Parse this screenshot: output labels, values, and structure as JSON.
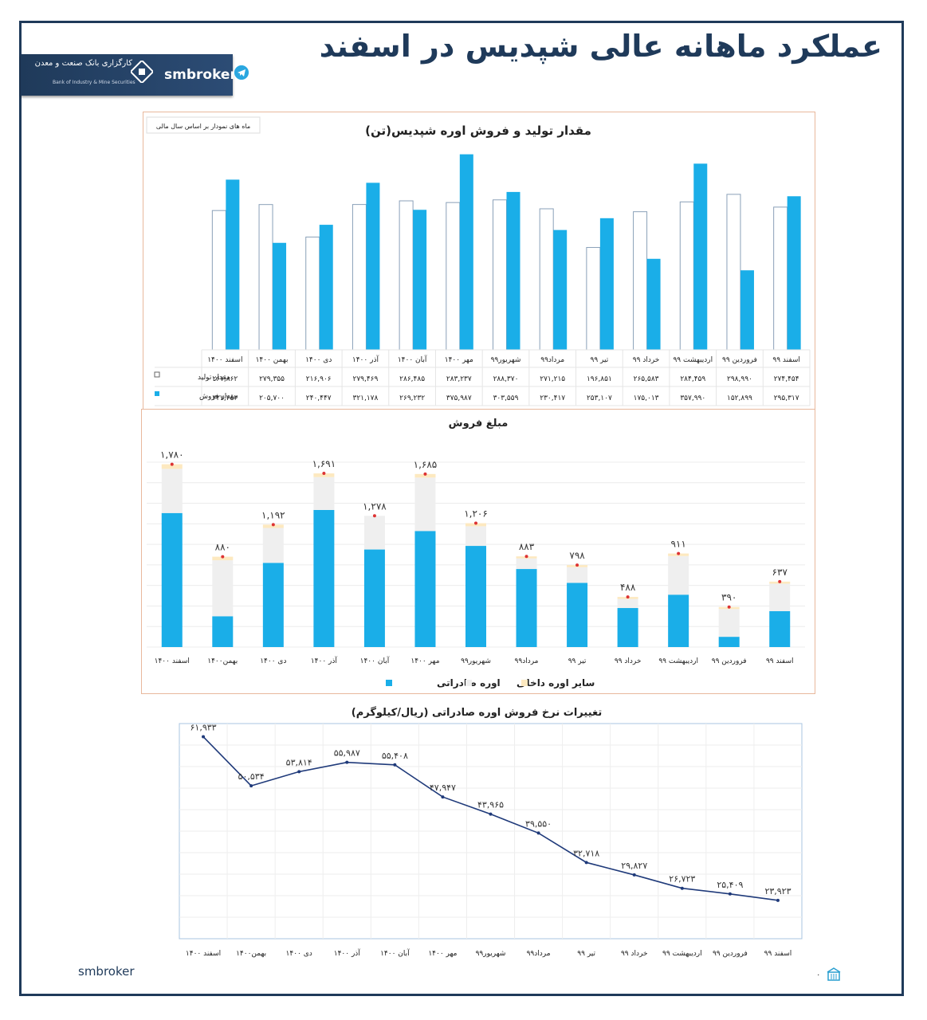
{
  "header": {
    "title": "عملکرد ماهانه عالی شپدیس در اسفند",
    "logo_bank": "کارگزاری بانک صنعت و معدن",
    "logo_bank_en": "Bank of Industry & Mine Securities",
    "logo_brand": "smbroker"
  },
  "footer": {
    "brand": "smbroker",
    "page_marker": "۰"
  },
  "colors": {
    "frame": "#1f3a5a",
    "bar_sales": "#1aaee8",
    "bar_domestic": "#efefef",
    "bar_other": "#fde9c0",
    "line": "#1f3a7a",
    "chart_border": "#e8b89c"
  },
  "chart_data": [
    {
      "type": "bar",
      "title": "مقدار تولید و فروش اوره شپدیس(تن)",
      "note": "ماه های نمودار بر اساس سال مالی",
      "categories": [
        "اسفند ۱۴۰۰",
        "بهمن ۱۴۰۰",
        "دی ۱۴۰۰",
        "آذر ۱۴۰۰",
        "آبان ۱۴۰۰",
        "مهر ۱۴۰۰",
        "شهریور۹۹",
        "مرداد۹۹",
        "تیر ۹۹",
        "خرداد ۹۹",
        "اردیبهشت ۹۹",
        "فروردین ۹۹",
        "اسفند ۹۹"
      ],
      "series": [
        {
          "name": "مقدار تولید",
          "values": [
            267862,
            279355,
            216906,
            279469,
            286485,
            283237,
            288370,
            271215,
            196851,
            265583,
            284459,
            298990,
            274454
          ],
          "labels": [
            "۲۶۷,۸۶۲",
            "۲۷۹,۳۵۵",
            "۲۱۶,۹۰۶",
            "۲۷۹,۴۶۹",
            "۲۸۶,۴۸۵",
            "۲۸۳,۲۳۷",
            "۲۸۸,۳۷۰",
            "۲۷۱,۲۱۵",
            "۱۹۶,۸۵۱",
            "۲۶۵,۵۸۳",
            "۲۸۴,۴۵۹",
            "۲۹۸,۹۹۰",
            "۲۷۴,۴۵۴"
          ]
        },
        {
          "name": "مقدار فروش",
          "values": [
            327253,
            205700,
            240447,
            321178,
            269232,
            375987,
            303559,
            230417,
            253107,
            175013,
            357990,
            152899,
            295317
          ],
          "labels": [
            "۳۲۷,۲۵۳",
            "۲۰۵,۷۰۰",
            "۲۴۰,۴۴۷",
            "۳۲۱,۱۷۸",
            "۲۶۹,۲۳۲",
            "۳۷۵,۹۸۷",
            "۳۰۳,۵۵۹",
            "۲۳۰,۴۱۷",
            "۲۵۳,۱۰۷",
            "۱۷۵,۰۱۳",
            "۳۵۷,۹۹۰",
            "۱۵۲,۸۹۹",
            "۲۹۵,۳۱۷"
          ]
        }
      ],
      "ylim": [
        0,
        380000
      ]
    },
    {
      "type": "bar",
      "stacked": true,
      "title": "مبلغ فروش",
      "categories": [
        "اسفند ۱۴۰۰",
        "بهمن۱۴۰۰",
        "دی ۱۴۰۰",
        "آذر ۱۴۰۰",
        "آبان ۱۴۰۰",
        "مهر ۱۴۰۰",
        "شهریور۹۹",
        "مرداد۹۹",
        "تیر ۹۹",
        "خرداد ۹۹",
        "اردیبهشت ۹۹",
        "فروردین ۹۹",
        "اسفند ۹۹"
      ],
      "totals": [
        1780,
        880,
        1192,
        1691,
        1278,
        1685,
        1206,
        883,
        798,
        488,
        911,
        390,
        637
      ],
      "total_labels": [
        "۱,۷۸۰",
        "۸۸۰",
        "۱,۱۹۲",
        "۱,۶۹۱",
        "۱,۲۷۸",
        "۱,۶۸۵",
        "۱,۲۰۶",
        "۸۸۳",
        "۷۹۸",
        "۴۸۸",
        "۹۱۱",
        "۳۹۰",
        "۶۳۷"
      ],
      "series": [
        {
          "name": "اوره صادراتی",
          "values": [
            1305,
            300,
            820,
            1335,
            950,
            1130,
            985,
            760,
            625,
            380,
            510,
            100,
            350
          ]
        },
        {
          "name": "اوره داخلی",
          "values": [
            430,
            545,
            340,
            320,
            328,
            520,
            191,
            103,
            153,
            88,
            376,
            270,
            267
          ]
        },
        {
          "name": "سایر",
          "values": [
            45,
            35,
            32,
            36,
            0,
            35,
            30,
            20,
            20,
            20,
            25,
            20,
            20
          ]
        }
      ],
      "ylim": [
        0,
        1800
      ]
    },
    {
      "type": "line",
      "title": "تغییرات نرخ فروش اوره صادراتی (ریال/کیلوگرم)",
      "categories": [
        "اسفند ۱۴۰۰",
        "بهمن۱۴۰۰",
        "دی ۱۴۰۰",
        "آذر ۱۴۰۰",
        "آبان ۱۴۰۰",
        "مهر ۱۴۰۰",
        "شهریور۹۹",
        "مرداد۹۹",
        "تیر ۹۹",
        "خرداد ۹۹",
        "اردیبهشت ۹۹",
        "فروردین ۹۹",
        "اسفند ۹۹"
      ],
      "values": [
        61933,
        50534,
        53814,
        55987,
        55408,
        47947,
        43965,
        39550,
        32718,
        29827,
        26723,
        25409,
        23923
      ],
      "labels": [
        "۶۱,۹۳۳",
        "۵۰,۵۳۴",
        "۵۳,۸۱۴",
        "۵۵,۹۸۷",
        "۵۵,۴۰۸",
        "۴۷,۹۴۷",
        "۴۳,۹۶۵",
        "۳۹,۵۵۰",
        "۳۲,۷۱۸",
        "۲۹,۸۲۷",
        "۲۶,۷۲۳",
        "۲۵,۴۰۹",
        "۲۳,۹۲۳"
      ],
      "ylim": [
        15000,
        65000
      ],
      "grid": true
    }
  ]
}
